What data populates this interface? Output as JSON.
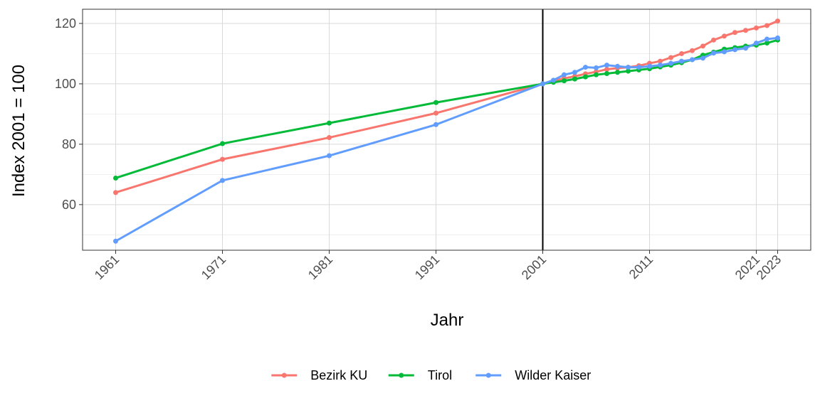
{
  "chart_data": {
    "type": "line",
    "x_label": "Jahr",
    "y_label": "Index 2001 = 100",
    "x": [
      1961,
      1971,
      1981,
      1991,
      2001,
      2002,
      2003,
      2004,
      2005,
      2006,
      2007,
      2008,
      2009,
      2010,
      2011,
      2012,
      2013,
      2014,
      2015,
      2016,
      2017,
      2018,
      2019,
      2020,
      2021,
      2022,
      2023
    ],
    "series": [
      {
        "name": "Bezirk KU",
        "color": "#f8766d",
        "values": [
          64,
          75,
          82.2,
          90.3,
          100,
          101,
          101.8,
          102.5,
          103.3,
          104,
          104.8,
          105.2,
          105.5,
          106,
          106.8,
          107.5,
          108.7,
          110,
          111,
          112.5,
          114.5,
          115.8,
          117,
          117.7,
          118.5,
          119.3,
          120.8
        ]
      },
      {
        "name": "Tirol",
        "color": "#00ba38",
        "values": [
          68.8,
          80.2,
          87,
          93.8,
          100,
          100.5,
          101,
          101.6,
          102.3,
          103,
          103.4,
          103.8,
          104.2,
          104.6,
          105,
          105.6,
          106.2,
          107,
          108,
          109.5,
          110.5,
          111.5,
          112,
          112.5,
          112.8,
          113.5,
          114.5
        ]
      },
      {
        "name": "Wilder Kaiser",
        "color": "#619cff",
        "values": [
          47.9,
          68,
          76.2,
          86.5,
          100,
          101.2,
          103,
          103.8,
          105.5,
          105.3,
          106.2,
          105.8,
          105.5,
          105.5,
          105.8,
          106.2,
          106.8,
          107.5,
          108,
          108.5,
          110.2,
          110.6,
          111.3,
          111.8,
          113.5,
          114.8,
          115.2
        ]
      }
    ],
    "xlim": [
      1957.9,
      2026.1
    ],
    "xticks": [
      1961,
      1971,
      1981,
      1991,
      2001,
      2011,
      2021,
      2023
    ],
    "ylim": [
      44.9,
      124.7
    ],
    "yticks": [
      60,
      80,
      100,
      120
    ],
    "minor_yticks": [
      50,
      70,
      90,
      110
    ],
    "vline": 2001,
    "grid": true,
    "legend": "bottom"
  }
}
